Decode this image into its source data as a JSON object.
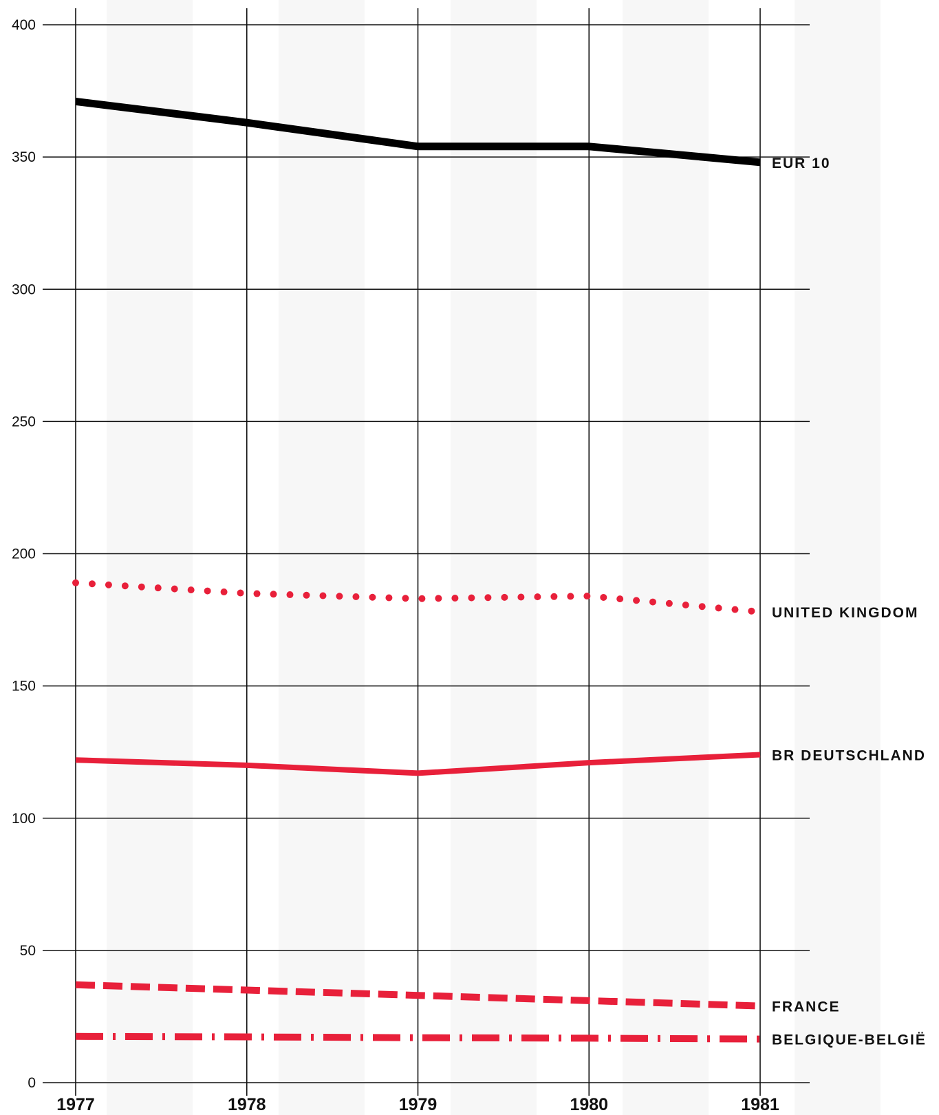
{
  "chart_data": {
    "type": "line",
    "x": [
      1977,
      1978,
      1979,
      1980,
      1981
    ],
    "xticks": [
      "1977",
      "1978",
      "1979",
      "1980",
      "1981"
    ],
    "yticks": [
      "0",
      "50",
      "100",
      "150",
      "200",
      "250",
      "300",
      "350",
      "400"
    ],
    "ylim": [
      0,
      400
    ],
    "grid": true,
    "series": [
      {
        "name": "EUR 10",
        "values": [
          371,
          363,
          354,
          354,
          348
        ],
        "color": "#000000",
        "style": "solid-thick"
      },
      {
        "name": "UNITED KINGDOM",
        "values": [
          189,
          185,
          183,
          184,
          178
        ],
        "color": "#e8203a",
        "style": "dotted"
      },
      {
        "name": "BR DEUTSCHLAND",
        "values": [
          122,
          120,
          117,
          121,
          124
        ],
        "color": "#e8203a",
        "style": "solid"
      },
      {
        "name": "FRANCE",
        "values": [
          37,
          35,
          33,
          31,
          29
        ],
        "color": "#e8203a",
        "style": "dashed"
      },
      {
        "name": "BELGIQUE-BELGIË",
        "values": [
          17.5,
          17.3,
          17,
          16.8,
          16.5
        ],
        "color": "#e8203a",
        "style": "dash-dot"
      }
    ]
  }
}
